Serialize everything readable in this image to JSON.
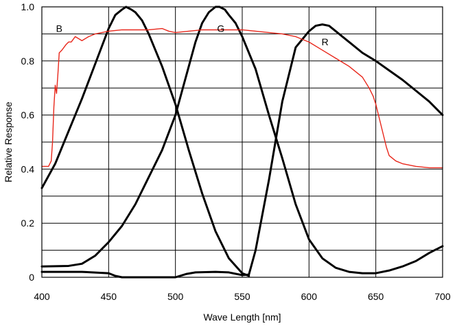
{
  "chart_data": {
    "type": "line",
    "title": "",
    "xlabel": "Wave Length [nm]",
    "ylabel": "Relative Response",
    "xlim": [
      400,
      700
    ],
    "ylim": [
      0,
      1.0
    ],
    "x_ticks": [
      "400",
      "450",
      "500",
      "550",
      "600",
      "650",
      "700"
    ],
    "y_ticks": [
      "0",
      "0.2",
      "0.4",
      "0.6",
      "0.8",
      "1.0"
    ],
    "grid": true,
    "series": [
      {
        "name": "B",
        "color": "#000000",
        "label_at": [
          413,
          0.92
        ],
        "x": [
          400,
          410,
          420,
          430,
          440,
          450,
          455,
          460,
          463,
          467,
          470,
          475,
          480,
          490,
          500,
          510,
          520,
          530,
          540,
          550,
          555
        ],
        "y": [
          0.33,
          0.42,
          0.54,
          0.66,
          0.79,
          0.92,
          0.97,
          0.99,
          1.0,
          0.99,
          0.98,
          0.95,
          0.9,
          0.78,
          0.64,
          0.47,
          0.31,
          0.17,
          0.07,
          0.015,
          0.005
        ]
      },
      {
        "name": "G",
        "color": "#000000",
        "label_at": [
          534,
          0.92
        ],
        "x": [
          400,
          420,
          430,
          440,
          450,
          460,
          470,
          480,
          490,
          500,
          510,
          515,
          520,
          525,
          530,
          533,
          537,
          540,
          545,
          550,
          560,
          570,
          580,
          590,
          600,
          610,
          620,
          630,
          640,
          650,
          660,
          670,
          680,
          690,
          700
        ],
        "y": [
          0.04,
          0.042,
          0.05,
          0.08,
          0.13,
          0.19,
          0.27,
          0.37,
          0.47,
          0.6,
          0.78,
          0.87,
          0.94,
          0.98,
          1.0,
          1.0,
          0.99,
          0.97,
          0.94,
          0.89,
          0.77,
          0.6,
          0.44,
          0.27,
          0.14,
          0.07,
          0.035,
          0.02,
          0.015,
          0.015,
          0.025,
          0.04,
          0.06,
          0.09,
          0.115
        ]
      },
      {
        "name": "R",
        "color": "#000000",
        "label_at": [
          612,
          0.87
        ],
        "x": [
          400,
          430,
          450,
          455,
          460,
          500,
          508,
          515,
          530,
          540,
          550,
          555,
          560,
          570,
          580,
          590,
          600,
          605,
          610,
          615,
          620,
          630,
          640,
          650,
          660,
          670,
          680,
          690,
          700
        ],
        "y": [
          0.02,
          0.02,
          0.015,
          0.005,
          0.0,
          0.0,
          0.012,
          0.018,
          0.02,
          0.018,
          0.008,
          0.01,
          0.1,
          0.36,
          0.65,
          0.85,
          0.91,
          0.93,
          0.935,
          0.93,
          0.91,
          0.87,
          0.83,
          0.8,
          0.765,
          0.73,
          0.69,
          0.65,
          0.6
        ]
      },
      {
        "name": "",
        "color": "#e8261a",
        "x": [
          400,
          402,
          405,
          407,
          408,
          409,
          410,
          411,
          412,
          413,
          415,
          418,
          420,
          422,
          425,
          430,
          435,
          440,
          450,
          460,
          470,
          480,
          490,
          495,
          500,
          510,
          520,
          530,
          540,
          550,
          560,
          570,
          580,
          590,
          600,
          610,
          620,
          630,
          640,
          645,
          648,
          650,
          652,
          655,
          658,
          660,
          665,
          670,
          680,
          690,
          700
        ],
        "y": [
          0.41,
          0.41,
          0.41,
          0.43,
          0.5,
          0.63,
          0.71,
          0.68,
          0.75,
          0.83,
          0.84,
          0.86,
          0.87,
          0.87,
          0.89,
          0.875,
          0.89,
          0.9,
          0.91,
          0.915,
          0.915,
          0.915,
          0.92,
          0.91,
          0.905,
          0.91,
          0.915,
          0.915,
          0.915,
          0.915,
          0.91,
          0.905,
          0.9,
          0.89,
          0.87,
          0.84,
          0.81,
          0.78,
          0.74,
          0.7,
          0.67,
          0.64,
          0.6,
          0.54,
          0.48,
          0.45,
          0.43,
          0.42,
          0.41,
          0.405,
          0.405
        ]
      }
    ]
  }
}
